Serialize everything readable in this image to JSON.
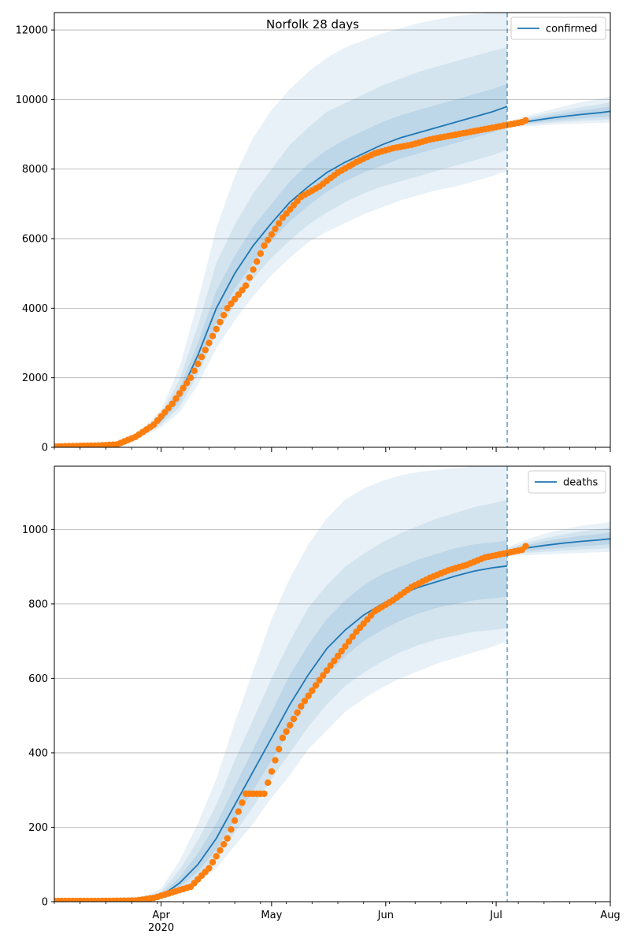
{
  "figure": {
    "suptitle": "Norfolk 28 days",
    "colors": {
      "model_line": "#1f77b4",
      "observed": "#ff7f0e",
      "band": "#1f77b4",
      "grid": "#b0b0b0",
      "cutoff_line": "#1f77b4"
    }
  },
  "chart_data": [
    {
      "type": "line",
      "name": "confirmed",
      "legend": "confirmed",
      "legend_position": "top-right",
      "x_axis": {
        "type": "date",
        "range": [
          "2020-03-03",
          "2020-08-01"
        ],
        "tick_labels": [
          {
            "date": "2020-04-01",
            "label": "Apr",
            "sublabel": "2020"
          },
          {
            "date": "2020-05-01",
            "label": "May"
          },
          {
            "date": "2020-06-01",
            "label": "Jun"
          },
          {
            "date": "2020-07-01",
            "label": "Jul"
          },
          {
            "date": "2020-08-01",
            "label": "Aug"
          }
        ]
      },
      "y_axis": {
        "range": [
          0,
          12500
        ],
        "ticks": [
          0,
          2000,
          4000,
          6000,
          8000,
          10000,
          12000
        ],
        "grid": true
      },
      "cutoff_date": "2020-07-04",
      "model": {
        "x": [
          "2020-03-22",
          "2020-03-27",
          "2020-04-01",
          "2020-04-06",
          "2020-04-11",
          "2020-04-16",
          "2020-04-21",
          "2020-04-26",
          "2020-05-01",
          "2020-05-06",
          "2020-05-11",
          "2020-05-16",
          "2020-05-21",
          "2020-05-26",
          "2020-05-31",
          "2020-06-05",
          "2020-06-10",
          "2020-06-15",
          "2020-06-20",
          "2020-06-25",
          "2020-06-30",
          "2020-07-04"
        ],
        "median": [
          90,
          400,
          800,
          1500,
          2650,
          4000,
          5000,
          5800,
          6450,
          7050,
          7500,
          7900,
          8200,
          8450,
          8700,
          8900,
          9050,
          9200,
          9350,
          9500,
          9650,
          9800
        ],
        "band_50": [
          [
            80,
            80
          ],
          [
            370,
            430
          ],
          [
            720,
            880
          ],
          [
            1300,
            1700
          ],
          [
            2350,
            3000
          ],
          [
            3600,
            4500
          ],
          [
            4550,
            5500
          ],
          [
            5300,
            6350
          ],
          [
            5950,
            7000
          ],
          [
            6500,
            7650
          ],
          [
            6950,
            8150
          ],
          [
            7350,
            8550
          ],
          [
            7650,
            8850
          ],
          [
            7900,
            9100
          ],
          [
            8100,
            9350
          ],
          [
            8300,
            9550
          ],
          [
            8450,
            9700
          ],
          [
            8600,
            9850
          ],
          [
            8750,
            10000
          ],
          [
            8900,
            10150
          ],
          [
            9050,
            10300
          ],
          [
            9200,
            10450
          ]
        ],
        "band_80": [
          [
            70,
            110
          ],
          [
            330,
            470
          ],
          [
            650,
            960
          ],
          [
            1150,
            1950
          ],
          [
            2100,
            3500
          ],
          [
            3250,
            5300
          ],
          [
            4100,
            6400
          ],
          [
            4850,
            7300
          ],
          [
            5450,
            8000
          ],
          [
            5950,
            8700
          ],
          [
            6400,
            9200
          ],
          [
            6750,
            9650
          ],
          [
            7050,
            9900
          ],
          [
            7300,
            10150
          ],
          [
            7500,
            10400
          ],
          [
            7650,
            10600
          ],
          [
            7800,
            10800
          ],
          [
            7950,
            10950
          ],
          [
            8100,
            11100
          ],
          [
            8250,
            11250
          ],
          [
            8400,
            11400
          ],
          [
            8550,
            11500
          ]
        ],
        "band_95": [
          [
            60,
            140
          ],
          [
            290,
            540
          ],
          [
            580,
            1080
          ],
          [
            1000,
            2300
          ],
          [
            1800,
            4200
          ],
          [
            2850,
            6300
          ],
          [
            3650,
            7800
          ],
          [
            4350,
            8900
          ],
          [
            4950,
            9700
          ],
          [
            5450,
            10300
          ],
          [
            5900,
            10800
          ],
          [
            6200,
            11200
          ],
          [
            6450,
            11500
          ],
          [
            6700,
            11700
          ],
          [
            6900,
            11900
          ],
          [
            7100,
            12050
          ],
          [
            7250,
            12200
          ],
          [
            7400,
            12300
          ],
          [
            7500,
            12400
          ],
          [
            7650,
            12450
          ],
          [
            7800,
            12500
          ],
          [
            7950,
            12500
          ]
        ]
      },
      "forecast": {
        "x": [
          "2020-07-04",
          "2020-07-09",
          "2020-07-14",
          "2020-07-19",
          "2020-07-24",
          "2020-07-29",
          "2020-08-01"
        ],
        "median": [
          9260,
          9360,
          9440,
          9510,
          9570,
          9620,
          9660
        ],
        "band_50": [
          [
            9230,
            9290
          ],
          [
            9310,
            9410
          ],
          [
            9370,
            9510
          ],
          [
            9420,
            9600
          ],
          [
            9460,
            9680
          ],
          [
            9490,
            9750
          ],
          [
            9510,
            9800
          ]
        ],
        "band_80": [
          [
            9210,
            9320
          ],
          [
            9270,
            9460
          ],
          [
            9320,
            9580
          ],
          [
            9360,
            9680
          ],
          [
            9390,
            9780
          ],
          [
            9410,
            9860
          ],
          [
            9430,
            9920
          ]
        ],
        "band_95": [
          [
            9190,
            9350
          ],
          [
            9230,
            9520
          ],
          [
            9260,
            9660
          ],
          [
            9290,
            9800
          ],
          [
            9310,
            9920
          ],
          [
            9330,
            10020
          ],
          [
            9340,
            10100
          ]
        ]
      },
      "observed": {
        "x": [
          "2020-03-03",
          "2020-03-10",
          "2020-03-15",
          "2020-03-20",
          "2020-03-25",
          "2020-03-30",
          "2020-04-04",
          "2020-04-09",
          "2020-04-14",
          "2020-04-19",
          "2020-04-24",
          "2020-04-29",
          "2020-05-04",
          "2020-05-09",
          "2020-05-14",
          "2020-05-19",
          "2020-05-24",
          "2020-05-29",
          "2020-06-03",
          "2020-06-08",
          "2020-06-13",
          "2020-06-18",
          "2020-06-23",
          "2020-06-28",
          "2020-07-03",
          "2020-07-08",
          "2020-07-09"
        ],
        "y": [
          20,
          40,
          50,
          80,
          300,
          650,
          1250,
          2000,
          3000,
          4000,
          4650,
          5800,
          6600,
          7200,
          7500,
          7900,
          8200,
          8450,
          8600,
          8700,
          8850,
          8950,
          9050,
          9150,
          9250,
          9350,
          9400
        ]
      }
    },
    {
      "type": "line",
      "name": "deaths",
      "legend": "deaths",
      "legend_position": "top-right",
      "x_axis": {
        "type": "date",
        "range": [
          "2020-03-03",
          "2020-08-01"
        ],
        "tick_labels": [
          {
            "date": "2020-04-01",
            "label": "Apr",
            "sublabel": "2020"
          },
          {
            "date": "2020-05-01",
            "label": "May"
          },
          {
            "date": "2020-06-01",
            "label": "Jun"
          },
          {
            "date": "2020-07-01",
            "label": "Jul"
          },
          {
            "date": "2020-08-01",
            "label": "Aug"
          }
        ]
      },
      "y_axis": {
        "range": [
          0,
          1170
        ],
        "ticks": [
          0,
          200,
          400,
          600,
          800,
          1000
        ],
        "grid": true
      },
      "cutoff_date": "2020-07-04",
      "model": {
        "x": [
          "2020-03-22",
          "2020-03-27",
          "2020-04-01",
          "2020-04-06",
          "2020-04-11",
          "2020-04-16",
          "2020-04-21",
          "2020-04-26",
          "2020-05-01",
          "2020-05-06",
          "2020-05-11",
          "2020-05-16",
          "2020-05-21",
          "2020-05-26",
          "2020-05-31",
          "2020-06-05",
          "2020-06-10",
          "2020-06-15",
          "2020-06-20",
          "2020-06-25",
          "2020-06-30",
          "2020-07-04"
        ],
        "median": [
          3,
          5,
          15,
          50,
          100,
          170,
          260,
          350,
          440,
          530,
          610,
          680,
          730,
          770,
          800,
          825,
          845,
          860,
          875,
          888,
          897,
          902
        ],
        "band_50": [
          [
            2,
            4
          ],
          [
            4,
            7
          ],
          [
            12,
            20
          ],
          [
            40,
            65
          ],
          [
            80,
            130
          ],
          [
            140,
            210
          ],
          [
            220,
            310
          ],
          [
            300,
            410
          ],
          [
            380,
            510
          ],
          [
            460,
            610
          ],
          [
            540,
            690
          ],
          [
            610,
            760
          ],
          [
            660,
            810
          ],
          [
            700,
            850
          ],
          [
            730,
            880
          ],
          [
            755,
            900
          ],
          [
            775,
            920
          ],
          [
            790,
            935
          ],
          [
            800,
            950
          ],
          [
            810,
            960
          ],
          [
            815,
            965
          ],
          [
            820,
            970
          ]
        ],
        "band_80": [
          [
            1,
            6
          ],
          [
            3,
            10
          ],
          [
            10,
            27
          ],
          [
            32,
            85
          ],
          [
            65,
            165
          ],
          [
            115,
            260
          ],
          [
            185,
            380
          ],
          [
            255,
            490
          ],
          [
            330,
            600
          ],
          [
            400,
            700
          ],
          [
            470,
            790
          ],
          [
            530,
            850
          ],
          [
            580,
            900
          ],
          [
            615,
            935
          ],
          [
            645,
            965
          ],
          [
            670,
            990
          ],
          [
            690,
            1010
          ],
          [
            705,
            1030
          ],
          [
            715,
            1045
          ],
          [
            725,
            1060
          ],
          [
            730,
            1070
          ],
          [
            735,
            1080
          ]
        ],
        "band_95": [
          [
            0,
            8
          ],
          [
            2,
            13
          ],
          [
            7,
            35
          ],
          [
            25,
            110
          ],
          [
            50,
            210
          ],
          [
            90,
            330
          ],
          [
            150,
            480
          ],
          [
            210,
            620
          ],
          [
            280,
            760
          ],
          [
            340,
            870
          ],
          [
            410,
            960
          ],
          [
            460,
            1030
          ],
          [
            510,
            1080
          ],
          [
            545,
            1110
          ],
          [
            575,
            1130
          ],
          [
            600,
            1145
          ],
          [
            620,
            1155
          ],
          [
            640,
            1160
          ],
          [
            655,
            1165
          ],
          [
            670,
            1170
          ],
          [
            685,
            1170
          ],
          [
            700,
            1170
          ]
        ]
      },
      "forecast": {
        "x": [
          "2020-07-04",
          "2020-07-09",
          "2020-07-14",
          "2020-07-19",
          "2020-07-24",
          "2020-07-29",
          "2020-08-01"
        ],
        "median": [
          940,
          950,
          957,
          963,
          968,
          972,
          975
        ],
        "band_50": [
          [
            935,
            945
          ],
          [
            942,
            958
          ],
          [
            947,
            968
          ],
          [
            951,
            976
          ],
          [
            955,
            983
          ],
          [
            958,
            988
          ],
          [
            960,
            992
          ]
        ],
        "band_80": [
          [
            932,
            948
          ],
          [
            937,
            964
          ],
          [
            940,
            976
          ],
          [
            943,
            986
          ],
          [
            946,
            995
          ],
          [
            948,
            1001
          ],
          [
            950,
            1006
          ]
        ],
        "band_95": [
          [
            928,
            952
          ],
          [
            931,
            972
          ],
          [
            933,
            988
          ],
          [
            935,
            1000
          ],
          [
            937,
            1010
          ],
          [
            939,
            1016
          ],
          [
            940,
            1020
          ]
        ]
      },
      "observed": {
        "x": [
          "2020-03-03",
          "2020-03-15",
          "2020-03-25",
          "2020-03-30",
          "2020-04-04",
          "2020-04-09",
          "2020-04-14",
          "2020-04-19",
          "2020-04-24",
          "2020-04-29",
          "2020-05-04",
          "2020-05-09",
          "2020-05-14",
          "2020-05-19",
          "2020-05-24",
          "2020-05-29",
          "2020-06-03",
          "2020-06-08",
          "2020-06-13",
          "2020-06-18",
          "2020-06-23",
          "2020-06-28",
          "2020-07-03",
          "2020-07-08",
          "2020-07-09"
        ],
        "y": [
          2,
          2,
          3,
          10,
          25,
          40,
          90,
          170,
          290,
          290,
          440,
          525,
          595,
          660,
          725,
          780,
          810,
          845,
          870,
          890,
          905,
          925,
          935,
          945,
          955
        ]
      }
    }
  ]
}
